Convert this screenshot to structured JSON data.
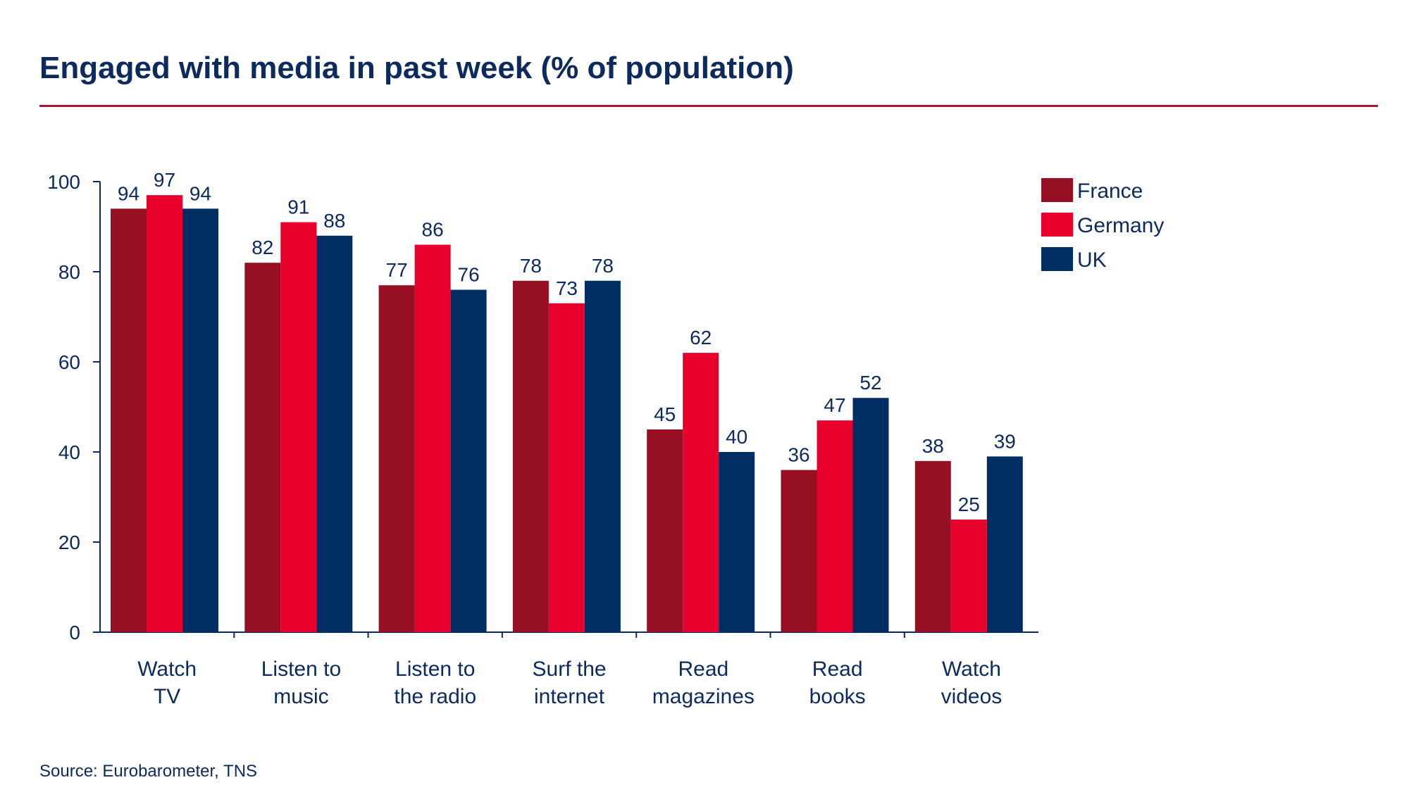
{
  "title": "Engaged with media in past week (% of population)",
  "source": "Source: Eurobarometer, TNS",
  "colors": {
    "title": "#0d2a5e",
    "rule": "#a6192e",
    "axis": "#0d2a5e"
  },
  "chart_data": {
    "type": "bar",
    "title": "Engaged with media in past week (% of population)",
    "xlabel": "",
    "ylabel": "",
    "ylim": [
      0,
      100
    ],
    "yticks": [
      0,
      20,
      40,
      60,
      80,
      100
    ],
    "grid": false,
    "legend_position": "top-right",
    "categories": [
      [
        "Watch",
        "TV"
      ],
      [
        "Listen to",
        "music"
      ],
      [
        "Listen to",
        "the radio"
      ],
      [
        "Surf the",
        "internet"
      ],
      [
        "Read",
        "magazines"
      ],
      [
        "Read",
        "books"
      ],
      [
        "Watch",
        "videos"
      ]
    ],
    "series": [
      {
        "name": "France",
        "color": "#970f22",
        "values": [
          94,
          82,
          77,
          78,
          45,
          36,
          38
        ]
      },
      {
        "name": "Germany",
        "color": "#e8002c",
        "values": [
          97,
          91,
          86,
          73,
          62,
          47,
          25
        ]
      },
      {
        "name": "UK",
        "color": "#002d62",
        "values": [
          94,
          88,
          76,
          78,
          40,
          52,
          39
        ]
      }
    ]
  }
}
